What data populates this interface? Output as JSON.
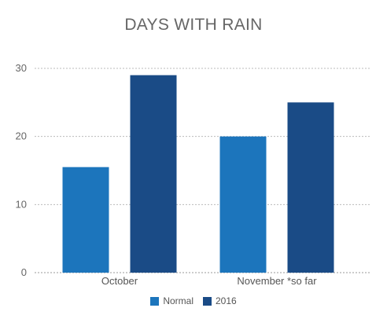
{
  "chart_data": {
    "type": "bar",
    "title": "DAYS WITH RAIN",
    "categories": [
      "October",
      "November *so far"
    ],
    "series": [
      {
        "name": "Normal",
        "values": [
          15.5,
          20
        ],
        "color": "#1c75bc"
      },
      {
        "name": "2016",
        "values": [
          29,
          25
        ],
        "color": "#1a4b86"
      }
    ],
    "ylim": [
      0,
      30
    ],
    "yticks": [
      0,
      10,
      20,
      30
    ],
    "grid": true,
    "legend": "bottom"
  }
}
